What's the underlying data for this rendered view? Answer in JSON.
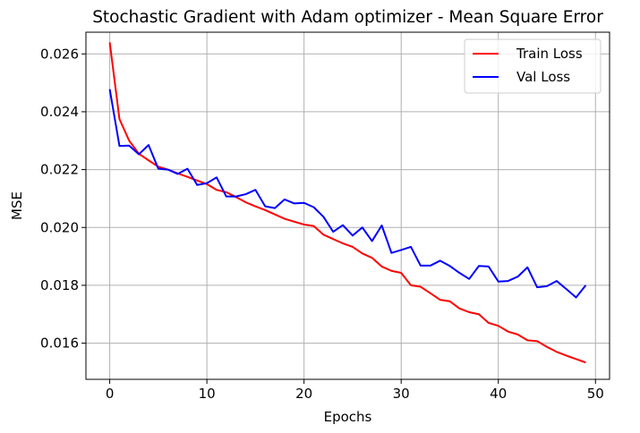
{
  "chart_data": {
    "type": "line",
    "title": "Stochastic Gradient with Adam optimizer - Mean Square Error",
    "xlabel": "Epochs",
    "ylabel": "MSE",
    "xlim": [
      -2.45,
      51.45
    ],
    "ylim": [
      0.01475,
      0.02675
    ],
    "xticks": [
      0,
      10,
      20,
      30,
      40,
      50
    ],
    "yticks": [
      0.016,
      0.018,
      0.02,
      0.022,
      0.024,
      0.026
    ],
    "xtick_labels": [
      "0",
      "10",
      "20",
      "30",
      "40",
      "50"
    ],
    "ytick_labels": [
      "0.016",
      "0.018",
      "0.020",
      "0.022",
      "0.024",
      "0.026"
    ],
    "grid": true,
    "legend_position": "upper-right",
    "x": [
      0,
      1,
      2,
      3,
      4,
      5,
      6,
      7,
      8,
      9,
      10,
      11,
      12,
      13,
      14,
      15,
      16,
      17,
      18,
      19,
      20,
      21,
      22,
      23,
      24,
      25,
      26,
      27,
      28,
      29,
      30,
      31,
      32,
      33,
      34,
      35,
      36,
      37,
      38,
      39,
      40,
      41,
      42,
      43,
      44,
      45,
      46,
      47,
      48,
      49
    ],
    "series": [
      {
        "name": "Train Loss",
        "color": "#ff0000",
        "values": [
          0.0264,
          0.02375,
          0.023,
          0.02255,
          0.02232,
          0.0221,
          0.022,
          0.02187,
          0.02175,
          0.02162,
          0.0215,
          0.0213,
          0.02122,
          0.02105,
          0.02087,
          0.02073,
          0.0206,
          0.02045,
          0.0203,
          0.0202,
          0.0201,
          0.02005,
          0.01975,
          0.0196,
          0.01945,
          0.01933,
          0.0191,
          0.01895,
          0.01865,
          0.0185,
          0.01843,
          0.018,
          0.01795,
          0.01773,
          0.0175,
          0.01745,
          0.0172,
          0.01707,
          0.017,
          0.0167,
          0.0166,
          0.0164,
          0.0163,
          0.0161,
          0.01607,
          0.01587,
          0.0157,
          0.01557,
          0.01545,
          0.01533
        ]
      },
      {
        "name": "Val Loss",
        "color": "#0000ff",
        "values": [
          0.02478,
          0.02282,
          0.02283,
          0.02253,
          0.02285,
          0.02203,
          0.022,
          0.02185,
          0.02203,
          0.02147,
          0.02153,
          0.02173,
          0.02107,
          0.02107,
          0.02115,
          0.0213,
          0.02073,
          0.02067,
          0.02097,
          0.02083,
          0.02085,
          0.0207,
          0.02037,
          0.01985,
          0.02008,
          0.01972,
          0.02,
          0.01953,
          0.02007,
          0.01912,
          0.01922,
          0.01933,
          0.01868,
          0.01868,
          0.01885,
          0.01867,
          0.01843,
          0.01822,
          0.01867,
          0.01865,
          0.01813,
          0.01815,
          0.0183,
          0.01862,
          0.01793,
          0.01797,
          0.01815,
          0.01787,
          0.01758,
          0.018
        ]
      }
    ]
  }
}
